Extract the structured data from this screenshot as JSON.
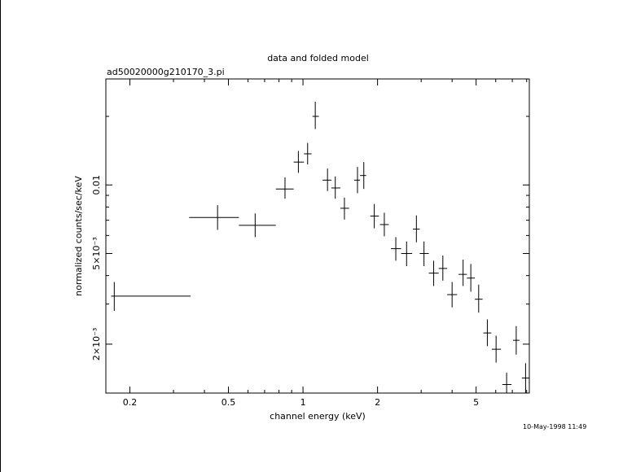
{
  "chart_data": {
    "type": "scatter",
    "title": "data and folded model",
    "subtitle": "ad50020000g210170_3.pi",
    "xlabel": "channel energy (keV)",
    "ylabel": "normalized counts/sec/keV",
    "xscale": "log",
    "yscale": "log",
    "xlim": [
      0.16,
      8.2
    ],
    "ylim": [
      0.00122,
      0.0292
    ],
    "x_tick_labels": [
      {
        "value": 0.2,
        "label": "0.2"
      },
      {
        "value": 0.5,
        "label": "0.5"
      },
      {
        "value": 1,
        "label": "1"
      },
      {
        "value": 2,
        "label": "2"
      },
      {
        "value": 5,
        "label": "5"
      }
    ],
    "y_tick_labels": [
      {
        "value": 0.01,
        "label": "0.01"
      },
      {
        "value": 0.005,
        "label": "5×10⁻³"
      },
      {
        "value": 0.002,
        "label": "2×10⁻³"
      }
    ],
    "series": [
      {
        "points": [
          {
            "x": 0.173,
            "y": 0.00325,
            "xlo": 0.168,
            "xhi": 0.352,
            "ylo": 0.0028,
            "yhi": 0.00375
          },
          {
            "x": 0.452,
            "y": 0.0072,
            "xlo": 0.347,
            "xhi": 0.551,
            "ylo": 0.00635,
            "yhi": 0.00815
          },
          {
            "x": 0.641,
            "y": 0.00665,
            "xlo": 0.551,
            "xhi": 0.777,
            "ylo": 0.0059,
            "yhi": 0.0075
          },
          {
            "x": 0.846,
            "y": 0.0096,
            "xlo": 0.777,
            "xhi": 0.917,
            "ylo": 0.0087,
            "yhi": 0.0108
          },
          {
            "x": 0.958,
            "y": 0.0126,
            "xlo": 0.917,
            "xhi": 1.009,
            "ylo": 0.0113,
            "yhi": 0.0141
          },
          {
            "x": 1.044,
            "y": 0.0137,
            "xlo": 1.009,
            "xhi": 1.083,
            "ylo": 0.0123,
            "yhi": 0.0153
          },
          {
            "x": 1.121,
            "y": 0.02,
            "xlo": 1.092,
            "xhi": 1.159,
            "ylo": 0.0176,
            "yhi": 0.0232
          },
          {
            "x": 1.256,
            "y": 0.0105,
            "xlo": 1.2,
            "xhi": 1.302,
            "ylo": 0.0094,
            "yhi": 0.0118
          },
          {
            "x": 1.35,
            "y": 0.0097,
            "xlo": 1.302,
            "xhi": 1.415,
            "ylo": 0.0087,
            "yhi": 0.0109
          },
          {
            "x": 1.47,
            "y": 0.0079,
            "xlo": 1.415,
            "xhi": 1.536,
            "ylo": 0.00705,
            "yhi": 0.0088
          },
          {
            "x": 1.66,
            "y": 0.0105,
            "xlo": 1.61,
            "xhi": 1.7,
            "ylo": 0.0092,
            "yhi": 0.012
          },
          {
            "x": 1.76,
            "y": 0.011,
            "xlo": 1.7,
            "xhi": 1.8,
            "ylo": 0.0096,
            "yhi": 0.0126
          },
          {
            "x": 1.94,
            "y": 0.0073,
            "xlo": 1.87,
            "xhi": 2.025,
            "ylo": 0.00645,
            "yhi": 0.00825
          },
          {
            "x": 2.13,
            "y": 0.0067,
            "xlo": 2.045,
            "xhi": 2.22,
            "ylo": 0.00595,
            "yhi": 0.00755
          },
          {
            "x": 2.37,
            "y": 0.00525,
            "xlo": 2.265,
            "xhi": 2.49,
            "ylo": 0.00465,
            "yhi": 0.0059
          },
          {
            "x": 2.62,
            "y": 0.005,
            "xlo": 2.49,
            "xhi": 2.76,
            "ylo": 0.0044,
            "yhi": 0.00565
          },
          {
            "x": 2.87,
            "y": 0.0064,
            "xlo": 2.78,
            "xhi": 2.96,
            "ylo": 0.0056,
            "yhi": 0.00735
          },
          {
            "x": 3.08,
            "y": 0.005,
            "xlo": 2.96,
            "xhi": 3.22,
            "ylo": 0.0044,
            "yhi": 0.00565
          },
          {
            "x": 3.37,
            "y": 0.0041,
            "xlo": 3.22,
            "xhi": 3.53,
            "ylo": 0.0036,
            "yhi": 0.00465
          },
          {
            "x": 3.67,
            "y": 0.0043,
            "xlo": 3.53,
            "xhi": 3.82,
            "ylo": 0.0038,
            "yhi": 0.0049
          },
          {
            "x": 4.0,
            "y": 0.0033,
            "xlo": 3.82,
            "xhi": 4.19,
            "ylo": 0.0029,
            "yhi": 0.00375
          },
          {
            "x": 4.43,
            "y": 0.00405,
            "xlo": 4.25,
            "xhi": 4.59,
            "ylo": 0.0036,
            "yhi": 0.0047
          },
          {
            "x": 4.76,
            "y": 0.0039,
            "xlo": 4.59,
            "xhi": 4.94,
            "ylo": 0.0034,
            "yhi": 0.0045
          },
          {
            "x": 5.12,
            "y": 0.00315,
            "xlo": 4.94,
            "xhi": 5.31,
            "ylo": 0.00275,
            "yhi": 0.00365
          },
          {
            "x": 5.55,
            "y": 0.00224,
            "xlo": 5.35,
            "xhi": 5.76,
            "ylo": 0.00196,
            "yhi": 0.00257
          },
          {
            "x": 6.02,
            "y": 0.0019,
            "xlo": 5.78,
            "xhi": 6.3,
            "ylo": 0.00166,
            "yhi": 0.00218
          },
          {
            "x": 6.64,
            "y": 0.00133,
            "xlo": 6.38,
            "xhi": 6.95,
            "ylo": 0.00118,
            "yhi": 0.0015
          },
          {
            "x": 7.26,
            "y": 0.00208,
            "xlo": 7.05,
            "xhi": 7.48,
            "ylo": 0.0018,
            "yhi": 0.0024
          },
          {
            "x": 7.92,
            "y": 0.00142,
            "xlo": 7.65,
            "xhi": 8.2,
            "ylo": 0.00122,
            "yhi": 0.00165
          }
        ]
      }
    ],
    "grid": false
  },
  "footer": {
    "timestamp": "10-May-1998 11:49"
  }
}
